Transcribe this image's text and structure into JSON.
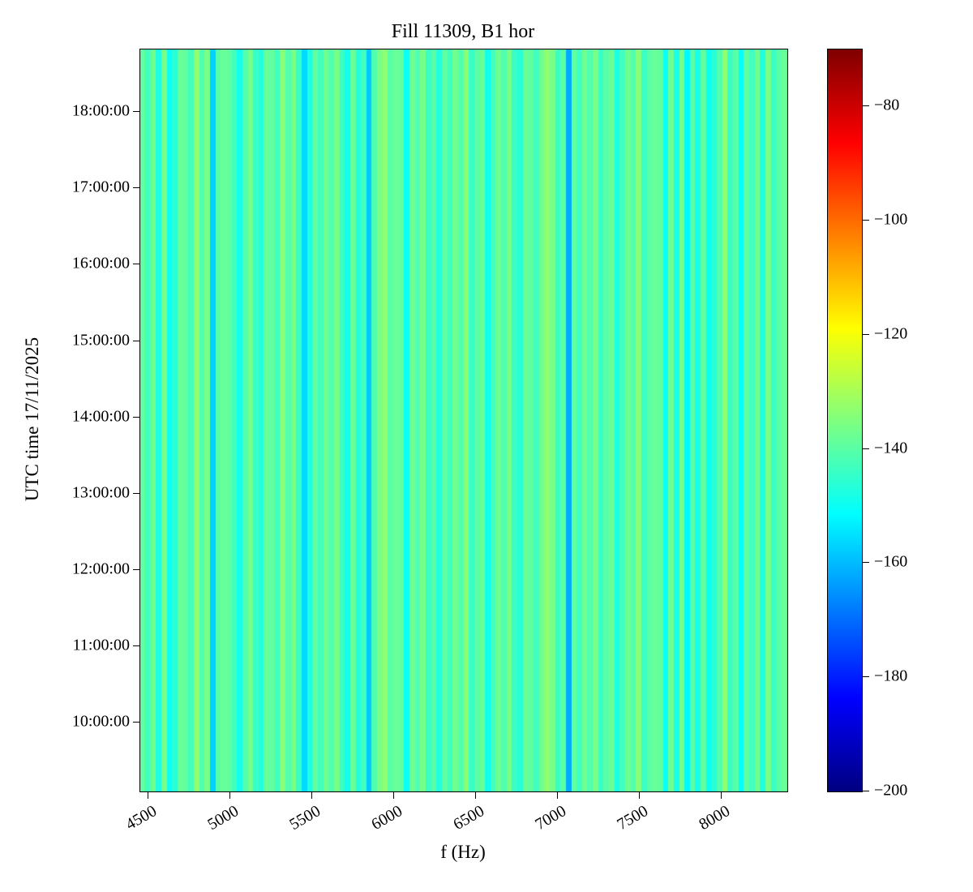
{
  "chart_data": {
    "type": "heatmap",
    "title": "Fill 11309, B1 hor",
    "xlabel": "f (Hz)",
    "ylabel": "UTC time 17/11/2025",
    "colormap": "jet",
    "x_axis": {
      "range_hz": [
        4450,
        8400
      ],
      "ticks": [
        4500,
        5000,
        5500,
        6000,
        6500,
        7000,
        7500,
        8000
      ]
    },
    "y_axis": {
      "range_hours": [
        9.1,
        18.82
      ],
      "ticks": [
        {
          "label": "18:00:00",
          "hour": 18
        },
        {
          "label": "17:00:00",
          "hour": 17
        },
        {
          "label": "16:00:00",
          "hour": 16
        },
        {
          "label": "15:00:00",
          "hour": 15
        },
        {
          "label": "14:00:00",
          "hour": 14
        },
        {
          "label": "13:00:00",
          "hour": 13
        },
        {
          "label": "12:00:00",
          "hour": 12
        },
        {
          "label": "11:00:00",
          "hour": 11
        },
        {
          "label": "10:00:00",
          "hour": 10
        }
      ]
    },
    "colorbar": {
      "range_db": [
        -200,
        -70
      ],
      "ticks": [
        -80,
        -100,
        -120,
        -140,
        -160,
        -180,
        -200
      ]
    },
    "values_constant_in_time": true,
    "values_db_per_freq_column": [
      -139,
      -143,
      -137,
      -148,
      -136,
      -150,
      -146,
      -138,
      -139,
      -143,
      -133,
      -141,
      -136,
      -157,
      -140,
      -138,
      -139,
      -143,
      -149,
      -141,
      -136,
      -144,
      -147,
      -138,
      -139,
      -143,
      -134,
      -141,
      -136,
      -144,
      -156,
      -148,
      -139,
      -143,
      -137,
      -141,
      -136,
      -144,
      -149,
      -138,
      -147,
      -143,
      -158,
      -141,
      -136,
      -133,
      -140,
      -138,
      -139,
      -150,
      -137,
      -141,
      -136,
      -144,
      -140,
      -147,
      -139,
      -143,
      -137,
      -141,
      -134,
      -144,
      -140,
      -138,
      -149,
      -143,
      -137,
      -141,
      -136,
      -144,
      -146,
      -138,
      -139,
      -143,
      -137,
      -133,
      -136,
      -144,
      -140,
      -162,
      -139,
      -143,
      -137,
      -141,
      -136,
      -144,
      -140,
      -138,
      -148,
      -143,
      -137,
      -141,
      -134,
      -144,
      -140,
      -138,
      -139,
      -150,
      -137,
      -148,
      -136,
      -152,
      -140,
      -148,
      -139,
      -150,
      -146,
      -141,
      -133,
      -144,
      -140,
      -151,
      -139,
      -143,
      -137,
      -147,
      -136,
      -144,
      -140,
      -138
    ]
  }
}
